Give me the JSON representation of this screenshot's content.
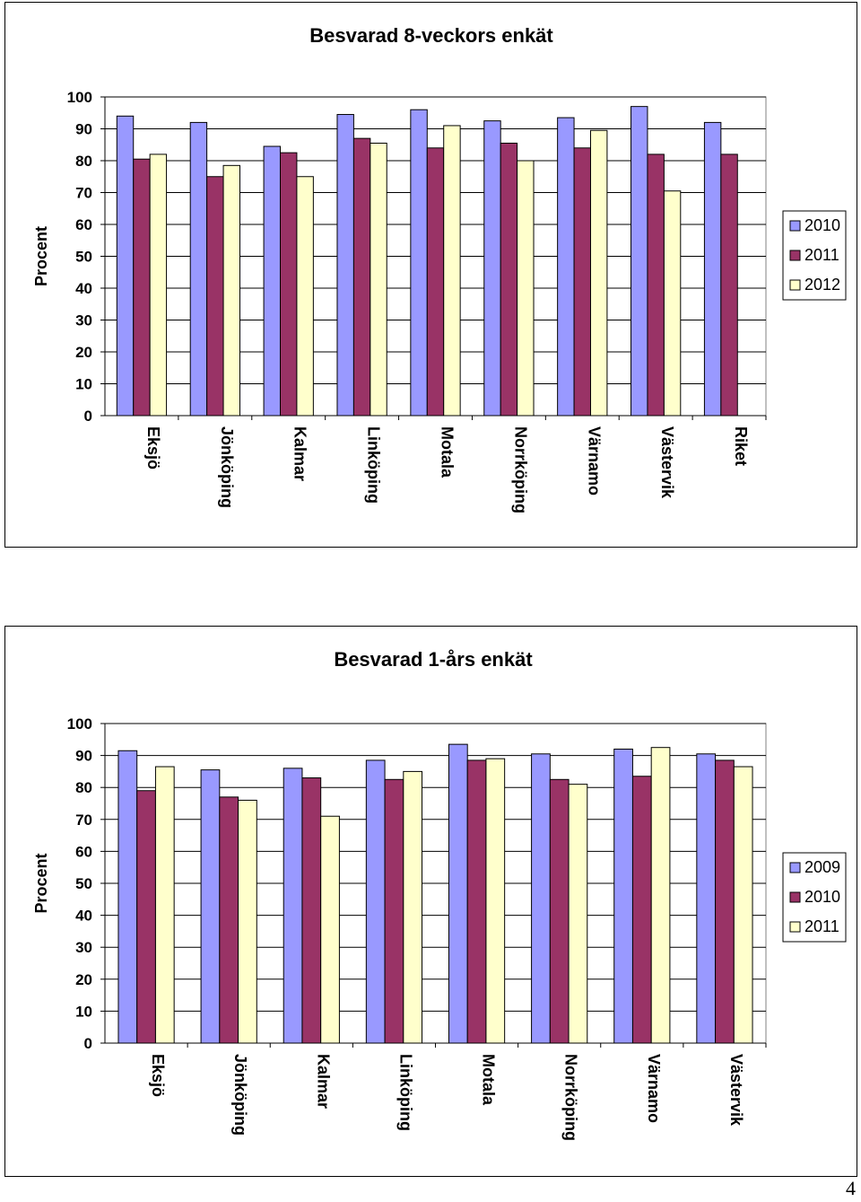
{
  "page_number": "4",
  "colors": {
    "first": "#9999FF",
    "second": "#993366",
    "third": "#FFFFCC",
    "grid": "#000000"
  },
  "chart_data": [
    {
      "type": "bar",
      "title": "Besvarad 8-veckors enkät",
      "xlabel": "",
      "ylabel": "Procent",
      "ylim": [
        0,
        100
      ],
      "yticks": [
        "0",
        "10",
        "20",
        "30",
        "40",
        "50",
        "60",
        "70",
        "80",
        "90",
        "100"
      ],
      "grid": true,
      "legend_position": "right",
      "categories": [
        "Eksjö",
        "Jönköping",
        "Kalmar",
        "Linköping",
        "Motala",
        "Norrköping",
        "Värnamo",
        "Västervik",
        "Riket"
      ],
      "series": [
        {
          "name": "2010",
          "values": [
            94,
            92,
            84.5,
            94.5,
            96,
            92.5,
            93.5,
            97,
            92
          ]
        },
        {
          "name": "2011",
          "values": [
            80.5,
            75,
            82.5,
            87,
            84,
            85.5,
            84,
            82,
            82
          ]
        },
        {
          "name": "2012",
          "values": [
            82,
            78.5,
            75,
            85.5,
            91,
            80,
            89.5,
            70.5,
            null
          ]
        }
      ]
    },
    {
      "type": "bar",
      "title": "Besvarad 1-års enkät",
      "xlabel": "",
      "ylabel": "Procent",
      "ylim": [
        0,
        100
      ],
      "yticks": [
        "0",
        "10",
        "20",
        "30",
        "40",
        "50",
        "60",
        "70",
        "80",
        "90",
        "100"
      ],
      "grid": true,
      "legend_position": "right",
      "categories": [
        "Eksjö",
        "Jönköping",
        "Kalmar",
        "Linköping",
        "Motala",
        "Norrköping",
        "Värnamo",
        "Västervik"
      ],
      "series": [
        {
          "name": "2009",
          "values": [
            91.5,
            85.5,
            86,
            88.5,
            93.5,
            90.5,
            92,
            90.5
          ]
        },
        {
          "name": "2010",
          "values": [
            79,
            77,
            83,
            82.5,
            88.5,
            82.5,
            83.5,
            88.5
          ]
        },
        {
          "name": "2011",
          "values": [
            86.5,
            76,
            71,
            85,
            89,
            81,
            92.5,
            86.5
          ]
        }
      ]
    }
  ]
}
